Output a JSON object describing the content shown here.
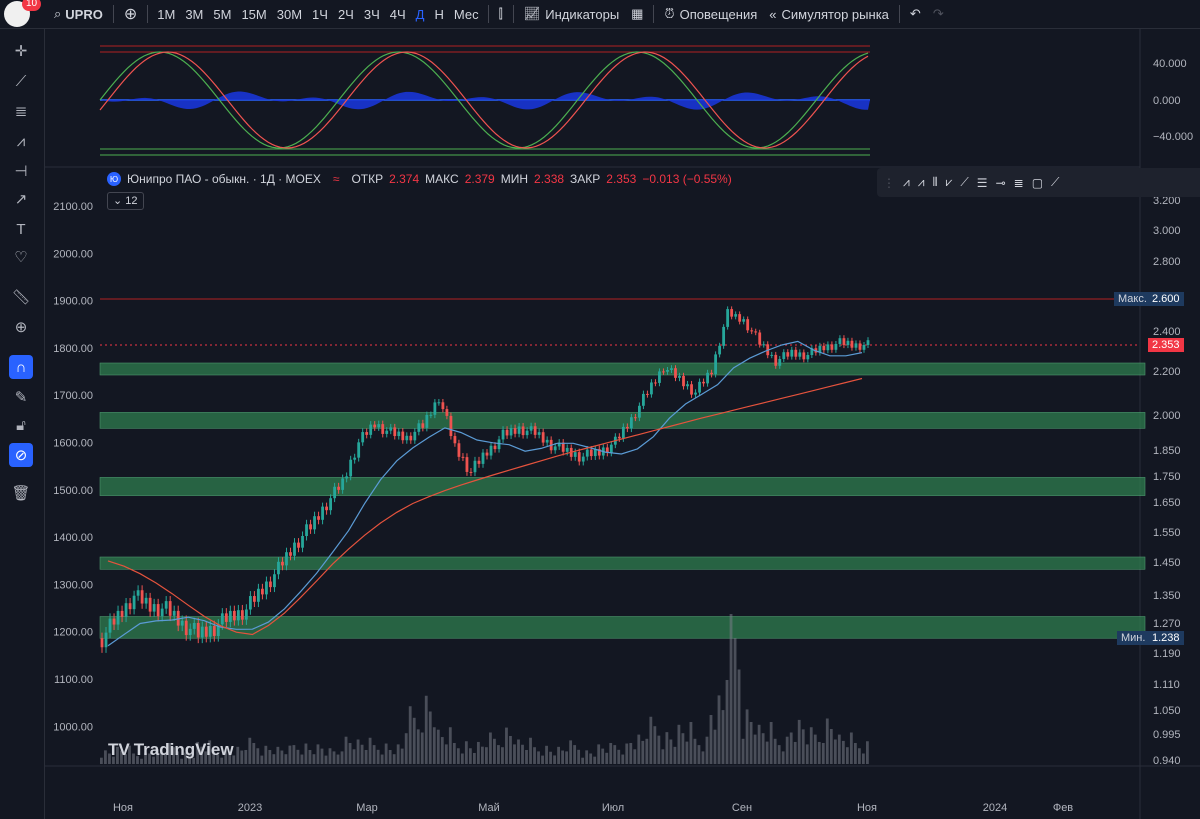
{
  "topbar": {
    "badge": "10",
    "symbol": "UPRO",
    "timeframes": [
      "1М",
      "3М",
      "5М",
      "15М",
      "30М",
      "1Ч",
      "2Ч",
      "3Ч",
      "4Ч",
      "Д",
      "Н",
      "Мес"
    ],
    "active_timeframe": "Д",
    "indicators_label": "Индикаторы",
    "alerts_label": "Оповещения",
    "replay_label": "Симулятор рынка"
  },
  "legend": {
    "logo": "Ю",
    "title": "Юнипро ПАО - обыкн. · 1Д · MOEX",
    "open_label": "ОТКР",
    "open": "2.374",
    "high_label": "МАКС",
    "high": "2.379",
    "low_label": "МИН",
    "low": "2.338",
    "close_label": "ЗАКР",
    "close": "2.353",
    "change": "−0.013 (−0.55%)",
    "collapse_count": "12"
  },
  "right_axis": {
    "osc_ticks": [
      "40.000",
      "0.000",
      "−40.000"
    ],
    "price_ticks": [
      "3.200",
      "3.000",
      "2.800",
      "2.600",
      "2.400",
      "2.200",
      "2.000",
      "1.850",
      "1.750",
      "1.650",
      "1.550",
      "1.450",
      "1.350",
      "1.270",
      "1.190",
      "1.110",
      "1.050",
      "0.995",
      "0.940"
    ],
    "max_label": "Макс.",
    "max_value": "2.600",
    "min_label": "Мин.",
    "min_value": "1.238",
    "last_price": "2.353"
  },
  "left_axis": {
    "ticks": [
      "2100.00",
      "2000.00",
      "1900.00",
      "1800.00",
      "1700.00",
      "1600.00",
      "1500.00",
      "1400.00",
      "1300.00",
      "1200.00",
      "1100.00",
      "1000.00"
    ]
  },
  "time_axis": {
    "labels": [
      "Ноя",
      "2023",
      "Мар",
      "Май",
      "Июл",
      "Сен",
      "Ноя",
      "2024",
      "Фев"
    ]
  },
  "watermark": "TradingView",
  "colors": {
    "up": "#26a69a",
    "down": "#ef5350",
    "accent": "#2962ff",
    "zone": "#2e7d4f",
    "ma_fast": "#5b9bd5",
    "ma_slow": "#e5533d"
  },
  "chart_data": {
    "type": "candlestick",
    "instrument": "Юнипро ПАО - обыкн.",
    "price_range": [
      0.94,
      3.2
    ],
    "support_zones": [
      [
        2.2,
        2.26
      ],
      [
        1.96,
        2.03
      ],
      [
        1.69,
        1.76
      ],
      [
        1.44,
        1.48
      ],
      [
        1.24,
        1.3
      ]
    ],
    "max": 2.6,
    "min": 1.238,
    "last": 2.353,
    "close_path": [
      1.24,
      1.3,
      1.36,
      1.33,
      1.32,
      1.28,
      1.25,
      1.27,
      1.3,
      1.32,
      1.38,
      1.44,
      1.52,
      1.58,
      1.66,
      1.74,
      1.9,
      1.98,
      1.94,
      1.92,
      1.97,
      2.1,
      1.88,
      1.78,
      1.86,
      1.93,
      1.96,
      1.94,
      1.89,
      1.86,
      1.84,
      1.86,
      1.9,
      2.0,
      2.12,
      2.24,
      2.18,
      2.12,
      2.22,
      2.52,
      2.48,
      2.36,
      2.27,
      2.31,
      2.3,
      2.34,
      2.36,
      2.35
    ],
    "volume_path": [
      6,
      7,
      5,
      6,
      8,
      5,
      9,
      6,
      7,
      10,
      8,
      7,
      9,
      8,
      6,
      12,
      10,
      9,
      8,
      22,
      30,
      14,
      10,
      9,
      12,
      16,
      10,
      8,
      7,
      9,
      6,
      8,
      9,
      12,
      18,
      14,
      16,
      12,
      28,
      60,
      24,
      16,
      12,
      18,
      14,
      20,
      12,
      10
    ]
  }
}
